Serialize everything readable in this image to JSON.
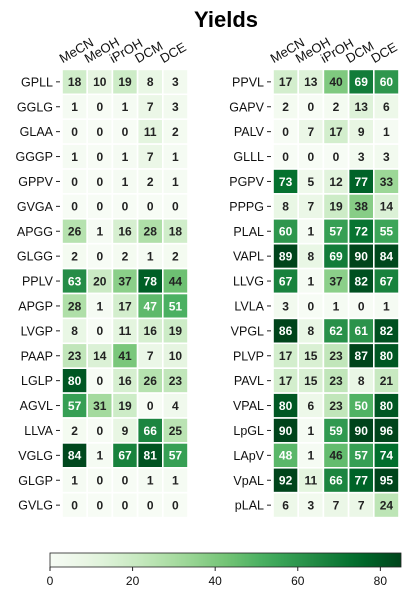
{
  "chart_data": {
    "type": "heatmap",
    "title": "Yields",
    "columns": [
      "MeCN",
      "MeOH",
      "iPrOH",
      "DCM",
      "DCE"
    ],
    "panels": [
      {
        "rows": [
          "GPLL",
          "GGLG",
          "GLAA",
          "GGGP",
          "GPPV",
          "GVGA",
          "APGG",
          "GLGG",
          "PPLV",
          "APGP",
          "LVGP",
          "PAAP",
          "LGLP",
          "AGVL",
          "LLVA",
          "VGLG",
          "GLGP",
          "GVLG"
        ],
        "values": [
          [
            18,
            10,
            19,
            8,
            3
          ],
          [
            1,
            0,
            1,
            7,
            3
          ],
          [
            0,
            0,
            0,
            11,
            2
          ],
          [
            1,
            0,
            1,
            7,
            1
          ],
          [
            0,
            0,
            1,
            2,
            1
          ],
          [
            0,
            0,
            0,
            0,
            0
          ],
          [
            26,
            1,
            16,
            28,
            18
          ],
          [
            2,
            0,
            2,
            1,
            2
          ],
          [
            63,
            20,
            37,
            78,
            44
          ],
          [
            28,
            1,
            17,
            47,
            51
          ],
          [
            8,
            0,
            11,
            16,
            19
          ],
          [
            23,
            14,
            41,
            7,
            10
          ],
          [
            80,
            0,
            16,
            26,
            23
          ],
          [
            57,
            31,
            19,
            0,
            4
          ],
          [
            2,
            0,
            9,
            66,
            25
          ],
          [
            84,
            1,
            67,
            81,
            57
          ],
          [
            1,
            0,
            0,
            1,
            1
          ],
          [
            0,
            0,
            0,
            0,
            0
          ]
        ]
      },
      {
        "rows": [
          "PPVL",
          "GAPV",
          "PALV",
          "GLLL",
          "PGPV",
          "PPPG",
          "PLAL",
          "VAPL",
          "LLVG",
          "LVLA",
          "VPGL",
          "PLVP",
          "PAVL",
          "VPAL",
          "LpGL",
          "LApV",
          "VpAL",
          "pLAL"
        ],
        "values": [
          [
            17,
            13,
            40,
            69,
            60
          ],
          [
            2,
            0,
            2,
            13,
            6
          ],
          [
            0,
            7,
            17,
            9,
            1
          ],
          [
            0,
            0,
            0,
            3,
            3
          ],
          [
            73,
            5,
            12,
            77,
            33
          ],
          [
            8,
            7,
            19,
            38,
            14
          ],
          [
            60,
            1,
            57,
            72,
            55
          ],
          [
            89,
            8,
            69,
            90,
            84
          ],
          [
            67,
            1,
            37,
            82,
            67
          ],
          [
            3,
            0,
            1,
            0,
            1
          ],
          [
            86,
            8,
            62,
            61,
            82
          ],
          [
            17,
            15,
            23,
            87,
            80
          ],
          [
            17,
            15,
            23,
            8,
            21
          ],
          [
            80,
            6,
            23,
            50,
            80
          ],
          [
            90,
            1,
            59,
            90,
            96
          ],
          [
            48,
            1,
            46,
            57,
            74
          ],
          [
            92,
            11,
            66,
            77,
            95
          ],
          [
            6,
            3,
            7,
            7,
            24
          ]
        ]
      }
    ],
    "colorbar": {
      "colormap": "Greens",
      "vmin": 0,
      "vmax": 85,
      "ticks": [
        0,
        20,
        40,
        60,
        80
      ]
    }
  }
}
